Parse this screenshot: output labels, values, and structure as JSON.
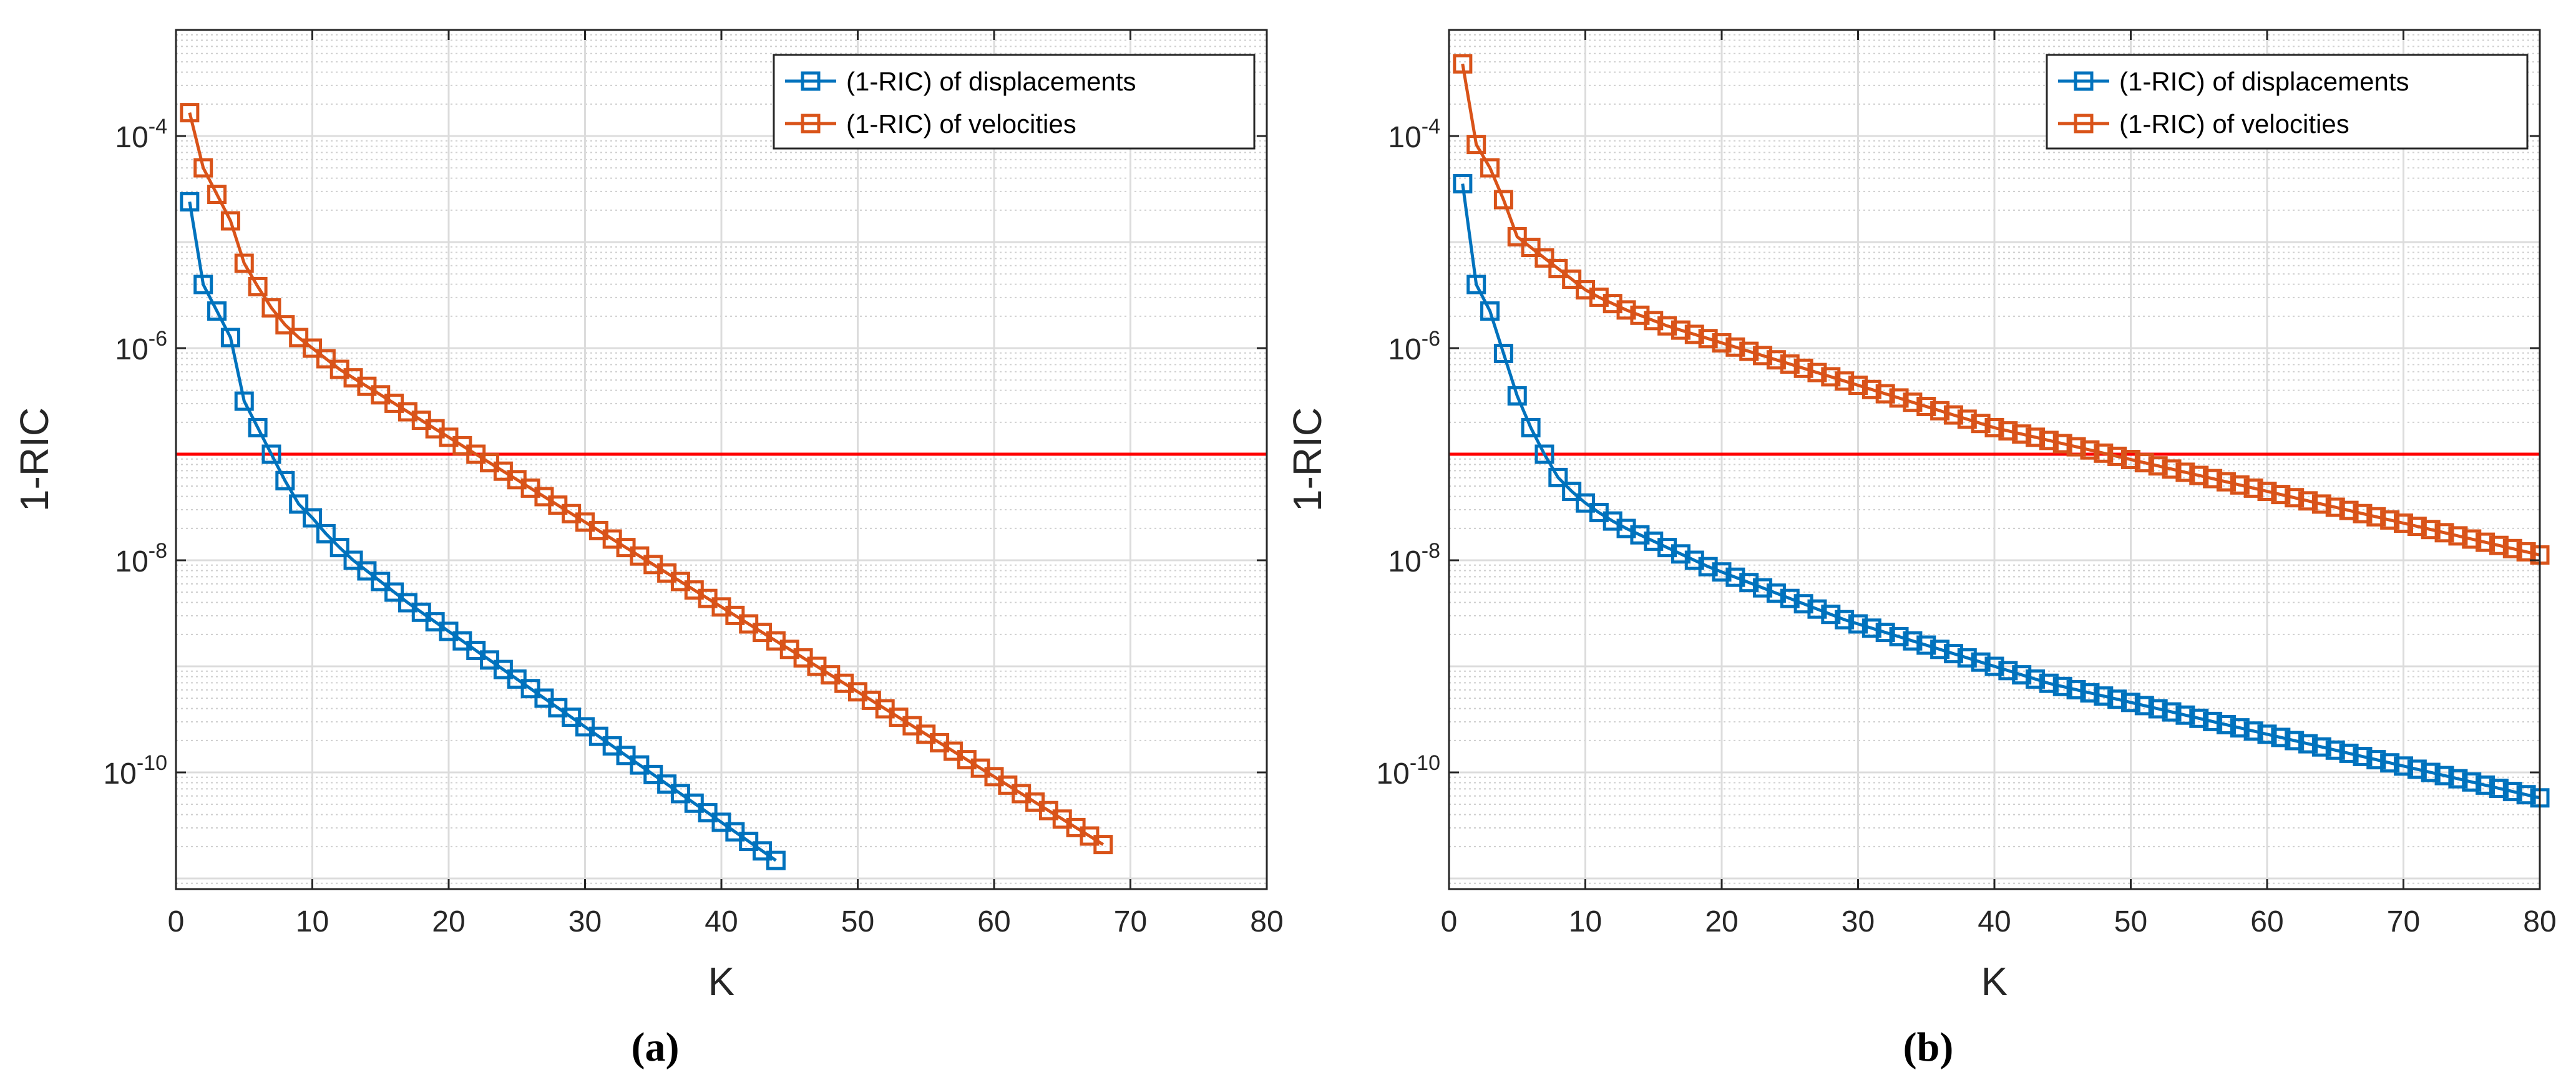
{
  "figure_captions": [
    "(a)",
    "(b)"
  ],
  "colors": {
    "displacements": "#0072bd",
    "velocities": "#d95319",
    "threshold": "#ff0000",
    "grid_major": "#dcdcdc",
    "grid_minor": "#cfcfcf",
    "axis": "#262626"
  },
  "chart_data": [
    {
      "id": "a",
      "type": "line",
      "caption": "(a)",
      "xlabel": "K",
      "ylabel": "1-RIC",
      "xscale": "linear",
      "yscale": "log",
      "xlim": [
        0,
        80
      ],
      "ylim_exp": [
        -11.1,
        -3.0
      ],
      "xticks": [
        0,
        10,
        20,
        30,
        40,
        50,
        60,
        70,
        80
      ],
      "yticks_exp": [
        -10,
        -8,
        -6,
        -4
      ],
      "ytick_labels": [
        {
          "base": "10",
          "exp": "-10"
        },
        {
          "base": "10",
          "exp": "-8"
        },
        {
          "base": "10",
          "exp": "-6"
        },
        {
          "base": "10",
          "exp": "-4"
        }
      ],
      "grid": true,
      "minor_grid": true,
      "legend_position": "top-right",
      "threshold_exp": -7,
      "marker": "square",
      "series": [
        {
          "name": "(1-RIC) of displacements",
          "color_key": "displacements",
          "x_start": 1,
          "log10_values": [
            -4.62,
            -5.4,
            -5.65,
            -5.9,
            -6.5,
            -6.75,
            -7.0,
            -7.25,
            -7.47,
            -7.6,
            -7.75,
            -7.88,
            -8.0,
            -8.1,
            -8.2,
            -8.3,
            -8.4,
            -8.49,
            -8.58,
            -8.67,
            -8.76,
            -8.85,
            -8.94,
            -9.03,
            -9.12,
            -9.21,
            -9.3,
            -9.39,
            -9.48,
            -9.57,
            -9.66,
            -9.75,
            -9.84,
            -9.93,
            -10.02,
            -10.11,
            -10.2,
            -10.29,
            -10.38,
            -10.47,
            -10.56,
            -10.65,
            -10.74,
            -10.83
          ]
        },
        {
          "name": "(1-RIC) of velocities",
          "color_key": "velocities",
          "x_start": 1,
          "log10_values": [
            -3.78,
            -4.3,
            -4.55,
            -4.8,
            -5.2,
            -5.42,
            -5.62,
            -5.78,
            -5.9,
            -6.0,
            -6.1,
            -6.2,
            -6.28,
            -6.36,
            -6.44,
            -6.52,
            -6.6,
            -6.68,
            -6.76,
            -6.84,
            -6.92,
            -7.0,
            -7.08,
            -7.16,
            -7.24,
            -7.32,
            -7.4,
            -7.48,
            -7.56,
            -7.64,
            -7.72,
            -7.8,
            -7.88,
            -7.96,
            -8.04,
            -8.12,
            -8.2,
            -8.28,
            -8.36,
            -8.44,
            -8.52,
            -8.6,
            -8.68,
            -8.76,
            -8.84,
            -8.92,
            -9.0,
            -9.08,
            -9.16,
            -9.24,
            -9.32,
            -9.4,
            -9.48,
            -9.56,
            -9.64,
            -9.72,
            -9.8,
            -9.88,
            -9.96,
            -10.04,
            -10.12,
            -10.2,
            -10.28,
            -10.36,
            -10.44,
            -10.52,
            -10.6,
            -10.68
          ]
        }
      ]
    },
    {
      "id": "b",
      "type": "line",
      "caption": "(b)",
      "xlabel": "K",
      "ylabel": "1-RIC",
      "xscale": "linear",
      "yscale": "log",
      "xlim": [
        0,
        80
      ],
      "ylim_exp": [
        -11.1,
        -3.0
      ],
      "xticks": [
        0,
        10,
        20,
        30,
        40,
        50,
        60,
        70,
        80
      ],
      "yticks_exp": [
        -10,
        -8,
        -6,
        -4
      ],
      "ytick_labels": [
        {
          "base": "10",
          "exp": "-10"
        },
        {
          "base": "10",
          "exp": "-8"
        },
        {
          "base": "10",
          "exp": "-6"
        },
        {
          "base": "10",
          "exp": "-4"
        }
      ],
      "grid": true,
      "minor_grid": true,
      "legend_position": "top-right",
      "threshold_exp": -7,
      "marker": "square",
      "series": [
        {
          "name": "(1-RIC) of displacements",
          "color_key": "displacements",
          "x_start": 1,
          "log10_values": [
            -4.45,
            -5.4,
            -5.65,
            -6.05,
            -6.45,
            -6.75,
            -7.0,
            -7.22,
            -7.35,
            -7.46,
            -7.55,
            -7.63,
            -7.7,
            -7.76,
            -7.82,
            -7.88,
            -7.94,
            -8.0,
            -8.06,
            -8.11,
            -8.16,
            -8.21,
            -8.26,
            -8.31,
            -8.36,
            -8.41,
            -8.46,
            -8.51,
            -8.56,
            -8.6,
            -8.64,
            -8.68,
            -8.72,
            -8.76,
            -8.8,
            -8.84,
            -8.88,
            -8.92,
            -8.96,
            -9.0,
            -9.04,
            -9.08,
            -9.12,
            -9.16,
            -9.19,
            -9.22,
            -9.25,
            -9.28,
            -9.31,
            -9.34,
            -9.37,
            -9.4,
            -9.43,
            -9.46,
            -9.49,
            -9.52,
            -9.55,
            -9.58,
            -9.61,
            -9.64,
            -9.67,
            -9.7,
            -9.73,
            -9.76,
            -9.79,
            -9.82,
            -9.85,
            -9.88,
            -9.91,
            -9.94,
            -9.97,
            -10.0,
            -10.03,
            -10.06,
            -10.09,
            -10.12,
            -10.15,
            -10.18,
            -10.21,
            -10.24
          ]
        },
        {
          "name": "(1-RIC) of velocities",
          "color_key": "velocities",
          "x_start": 1,
          "log10_values": [
            -3.32,
            -4.08,
            -4.3,
            -4.6,
            -4.95,
            -5.05,
            -5.15,
            -5.25,
            -5.35,
            -5.45,
            -5.52,
            -5.58,
            -5.64,
            -5.69,
            -5.74,
            -5.79,
            -5.83,
            -5.87,
            -5.91,
            -5.95,
            -5.99,
            -6.03,
            -6.07,
            -6.11,
            -6.15,
            -6.19,
            -6.23,
            -6.27,
            -6.31,
            -6.35,
            -6.39,
            -6.43,
            -6.47,
            -6.51,
            -6.55,
            -6.59,
            -6.63,
            -6.67,
            -6.71,
            -6.75,
            -6.78,
            -6.81,
            -6.84,
            -6.87,
            -6.9,
            -6.93,
            -6.96,
            -6.99,
            -7.02,
            -7.05,
            -7.08,
            -7.11,
            -7.14,
            -7.17,
            -7.2,
            -7.23,
            -7.26,
            -7.29,
            -7.32,
            -7.35,
            -7.38,
            -7.41,
            -7.44,
            -7.47,
            -7.5,
            -7.53,
            -7.56,
            -7.59,
            -7.62,
            -7.65,
            -7.68,
            -7.71,
            -7.74,
            -7.77,
            -7.8,
            -7.83,
            -7.86,
            -7.89,
            -7.92,
            -7.95
          ]
        }
      ]
    }
  ]
}
